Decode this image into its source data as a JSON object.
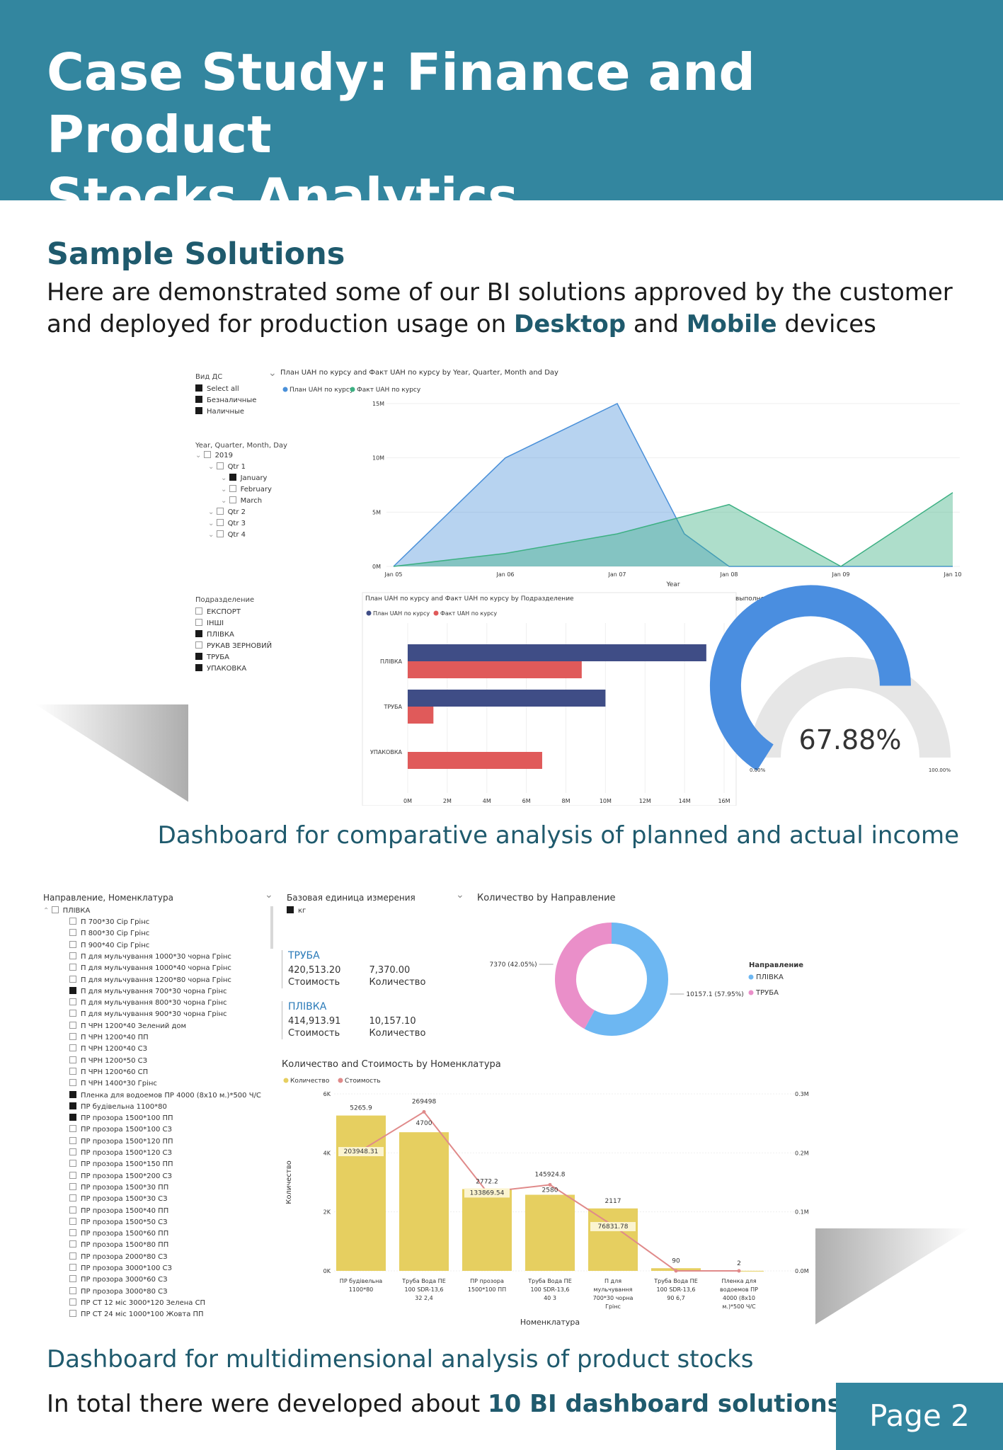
{
  "header": {
    "title_line1": "Case Study: Finance and Product",
    "title_line2": "Stocks Analytics"
  },
  "section": {
    "title": "Sample Solutions",
    "intro_part1": "Here are demonstrated some of our BI solutions approved by the customer and deployed for production usage on ",
    "intro_desktop": "Desktop",
    "intro_and": " and ",
    "intro_mobile": "Mobile",
    "intro_end": " devices"
  },
  "dashboard1": {
    "slicer_vid": {
      "title": "Вид ДС",
      "items": [
        {
          "label": "Select all",
          "checked": true
        },
        {
          "label": "Безналичные",
          "checked": true
        },
        {
          "label": "Наличные",
          "checked": true
        }
      ]
    },
    "slicer_date": {
      "title": "Year, Quarter, Month, Day",
      "items": [
        "2019",
        "Qtr 1",
        "January",
        "February",
        "March",
        "Qtr 2",
        "Qtr 3",
        "Qtr 4"
      ]
    },
    "slicer_dept": {
      "title": "Подразделение",
      "items": [
        {
          "label": "ЕКСПОРТ",
          "checked": false
        },
        {
          "label": "ІНШІ",
          "checked": false
        },
        {
          "label": "ПЛІВКА",
          "checked": true
        },
        {
          "label": "РУКАВ ЗЕРНОВИЙ",
          "checked": false
        },
        {
          "label": "ТРУБА",
          "checked": true
        },
        {
          "label": "УПАКОВКА",
          "checked": true
        }
      ]
    },
    "area_title": "План UAH по курсу and Факт UAH по курсу by Year, Quarter, Month and Day",
    "bar_title": "План UAH по курсу and Факт UAH по курсу by Подразделение",
    "gauge_title": "выполнение плана",
    "caption": "Dashboard for comparative analysis of planned and actual income"
  },
  "chart_data": [
    {
      "type": "area",
      "title": "План UAH по курсу and Факт UAH по курсу by Year, Quarter, Month and Day",
      "xlabel": "Year",
      "categories": [
        "Jan 05",
        "Jan 06",
        "Jan 07",
        "Jan 08",
        "Jan 09",
        "Jan 10"
      ],
      "ylim": [
        0,
        15
      ],
      "y_ticks": [
        "0M",
        "5M",
        "10M",
        "15M"
      ],
      "series": [
        {
          "name": "План UAH по курсу",
          "color": "#4a90d9",
          "x": [
            0,
            1,
            2,
            2.6,
            3,
            5
          ],
          "values": [
            0,
            10,
            15,
            3,
            0,
            0
          ]
        },
        {
          "name": "Факт UAH по курсу",
          "color": "#3db083",
          "x": [
            0,
            1,
            2,
            3,
            4,
            5
          ],
          "values": [
            0,
            1.2,
            3,
            5.7,
            0,
            6.8
          ]
        }
      ],
      "legend": "top-left"
    },
    {
      "type": "bar",
      "orientation": "horizontal",
      "title": "План UAH по курсу and Факт UAH по курсу by Подразделение",
      "categories": [
        "ПЛІВКА",
        "ТРУБА",
        "УПАКОВКА"
      ],
      "xlim": [
        0,
        16
      ],
      "x_ticks": [
        "0M",
        "2M",
        "4M",
        "6M",
        "8M",
        "10M",
        "12M",
        "14M",
        "16M"
      ],
      "series": [
        {
          "name": "План UAH по курсу",
          "color": "#3f4d86",
          "values": [
            15.1,
            10.0,
            0
          ]
        },
        {
          "name": "Факт UAH по курсу",
          "color": "#e05a5a",
          "values": [
            8.8,
            1.3,
            6.8
          ]
        }
      ]
    },
    {
      "type": "gauge",
      "title": "выполнение плана",
      "value": 67.88,
      "label": "67.88%",
      "min_label": "0.00%",
      "max_label": "100.00%"
    },
    {
      "type": "pie",
      "title": "Количество by Направление",
      "legend_title": "Направление",
      "slices": [
        {
          "name": "ПЛІВКА",
          "value": 10157.1,
          "label": "10157.1 (57.95%)",
          "color": "#6db7f2"
        },
        {
          "name": "ТРУБА",
          "value": 7370,
          "label": "7370 (42.05%)",
          "color": "#ea8fc9"
        }
      ]
    },
    {
      "type": "bar",
      "title": "Количество and Стоимость by Номенклатура",
      "xlabel": "Номенклатура",
      "ylabel": "Количество",
      "ylim": [
        0,
        6000
      ],
      "y_ticks": [
        "0K",
        "2K",
        "4K",
        "6K"
      ],
      "y2lim": [
        0,
        300000
      ],
      "y2_ticks": [
        "0.0M",
        "0.1M",
        "0.2M",
        "0.3M"
      ],
      "categories": [
        "ПР будівельна 1100*80",
        "Труба Вода ПЕ 100 SDR-13,6 32 2,4",
        "ПР прозора 1500*100 ПП",
        "Труба Вода ПЕ 100 SDR-13,6 40 3",
        "П для мульчування 700*30 чорна Грінс",
        "Труба Вода ПЕ 100 SDR-13,6 90 6,7",
        "Пленка для водоемов ПР 4000 (8х10 м.)*500 Ч/С"
      ],
      "series": [
        {
          "name": "Количество",
          "color": "#e6cf60",
          "values": [
            5265.9,
            4700,
            2772.2,
            2580,
            2117,
            90,
            2
          ],
          "labels": [
            "5265.9",
            "4700",
            "2772.2",
            "2580",
            "2117",
            "90",
            "2"
          ]
        },
        {
          "name": "Стоимость",
          "color": "#e08a8a",
          "values": [
            203948.31,
            269498,
            133869.54,
            145924.8,
            76831.78,
            0,
            0
          ],
          "labels": [
            "203948.31",
            "269498",
            "133869.54",
            "145924.8",
            "76831.78",
            "",
            ""
          ]
        }
      ]
    }
  ],
  "dashboard2": {
    "tree_title": "Направление, Номенклатура",
    "tree_root": "ПЛІВКА",
    "tree_items": [
      {
        "label": "П 700*30 Сір Грінс",
        "checked": false
      },
      {
        "label": "П 800*30 Сір Грінс",
        "checked": false
      },
      {
        "label": "П 900*40 Сір Грінс",
        "checked": false
      },
      {
        "label": "П для мульчування 1000*30 чорна Грінс",
        "checked": false
      },
      {
        "label": "П для мульчування 1000*40 чорна Грінс",
        "checked": false
      },
      {
        "label": "П для мульчування 1200*80 чорна Грінс",
        "checked": false
      },
      {
        "label": "П для мульчування 700*30 чорна Грінс",
        "checked": true
      },
      {
        "label": "П для мульчування 800*30 чорна Грінс",
        "checked": false
      },
      {
        "label": "П для мульчування 900*30 чорна Грінс",
        "checked": false
      },
      {
        "label": "П ЧРН 1200*40 Зелений дом",
        "checked": false
      },
      {
        "label": "П ЧРН 1200*40 ПП",
        "checked": false
      },
      {
        "label": "П ЧРН 1200*40 СЗ",
        "checked": false
      },
      {
        "label": "П ЧРН 1200*50 СЗ",
        "checked": false
      },
      {
        "label": "П ЧРН 1200*60 СП",
        "checked": false
      },
      {
        "label": "П ЧРН 1400*30 Грінс",
        "checked": false
      },
      {
        "label": "Пленка для водоемов ПР 4000 (8х10 м.)*500 Ч/С",
        "checked": true
      },
      {
        "label": "ПР будівельна 1100*80",
        "checked": true
      },
      {
        "label": "ПР прозора 1500*100 ПП",
        "checked": true
      },
      {
        "label": "ПР прозора 1500*100 СЗ",
        "checked": false
      },
      {
        "label": "ПР прозора 1500*120 ПП",
        "checked": false
      },
      {
        "label": "ПР прозора 1500*120 СЗ",
        "checked": false
      },
      {
        "label": "ПР прозора 1500*150 ПП",
        "checked": false
      },
      {
        "label": "ПР прозора 1500*200 СЗ",
        "checked": false
      },
      {
        "label": "ПР прозора 1500*30 ПП",
        "checked": false
      },
      {
        "label": "ПР прозора 1500*30 СЗ",
        "checked": false
      },
      {
        "label": "ПР прозора 1500*40 ПП",
        "checked": false
      },
      {
        "label": "ПР прозора 1500*50 СЗ",
        "checked": false
      },
      {
        "label": "ПР прозора 1500*60 ПП",
        "checked": false
      },
      {
        "label": "ПР прозора 1500*80 ПП",
        "checked": false
      },
      {
        "label": "ПР прозора 2000*80 СЗ",
        "checked": false
      },
      {
        "label": "ПР прозора 3000*100 СЗ",
        "checked": false
      },
      {
        "label": "ПР прозора 3000*60 СЗ",
        "checked": false
      },
      {
        "label": "ПР прозора 3000*80 СЗ",
        "checked": false
      },
      {
        "label": "ПР СТ 12 міс 3000*120 Зелена СП",
        "checked": false
      },
      {
        "label": "ПР СТ 24 міс 1000*100 Жовта ПП",
        "checked": false
      }
    ],
    "unit_title": "Базовая единица измерения",
    "unit_item": "кг",
    "card_truba": {
      "name": "ТРУБА",
      "cost": "420,513.20",
      "cost_label": "Стоимость",
      "qty": "7,370.00",
      "qty_label": "Количество"
    },
    "card_plivka": {
      "name": "ПЛІВКА",
      "cost": "414,913.91",
      "cost_label": "Стоимость",
      "qty": "10,157.10",
      "qty_label": "Количество"
    },
    "caption": "Dashboard for multidimensional analysis of product stocks"
  },
  "footer": {
    "total_prefix": "In total there were developed about ",
    "total_bold": "10 BI dashboard solutions",
    "page_label": "Page 2"
  }
}
